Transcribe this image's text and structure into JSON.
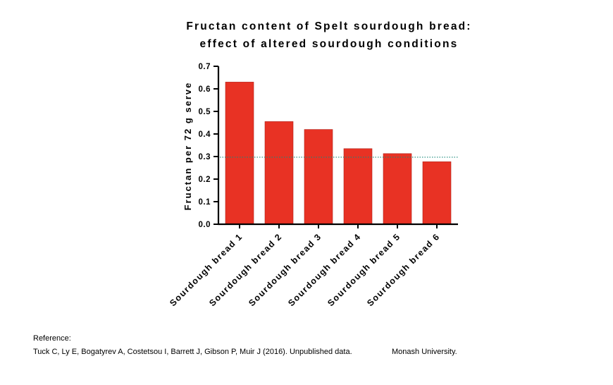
{
  "chart_data": {
    "type": "bar",
    "title": [
      "Fructan content of Spelt sourdough bread:",
      "effect of altered sourdough conditions"
    ],
    "xlabel": "",
    "ylabel": "Fructan per 72 g serve",
    "ylim": [
      0,
      0.7
    ],
    "yticks": [
      "0.0",
      "0.1",
      "0.2",
      "0.3",
      "0.4",
      "0.5",
      "0.6",
      "0.7"
    ],
    "categories": [
      "Sourdough bread 1",
      "Sourdough bread 2",
      "Sourdough bread 3",
      "Sourdough bread 4",
      "Sourdough bread 5",
      "Sourdough bread 6"
    ],
    "values": [
      0.63,
      0.455,
      0.42,
      0.335,
      0.313,
      0.277
    ],
    "reference_line": 0.297,
    "grid": false,
    "legend": "none",
    "colors": {
      "bar": "#e83224",
      "bar_edge": "#b02018",
      "reference_line": "#1a8a7a",
      "axis": "#000000"
    }
  },
  "reference": {
    "heading": "Reference:",
    "citation": "Tuck C, Ly E, Bogatyrev A, Costetsou I, Barrett J, Gibson P, Muir J (2016). Unpublished data.",
    "institution": "Monash University."
  }
}
